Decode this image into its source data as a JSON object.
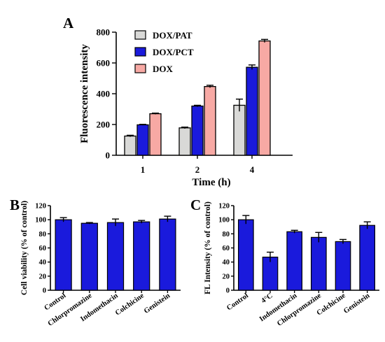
{
  "colors": {
    "pat": "#d9d9d7",
    "pct": "#1a1adc",
    "dox": "#f7a9a4",
    "blue": "#1a1adc",
    "axis": "#000000"
  },
  "chart_data": [
    {
      "id": "A",
      "panel_label": "A",
      "type": "bar",
      "xlabel": "Time (h)",
      "ylabel": "Fluorescence intensity",
      "ylim": [
        0,
        800
      ],
      "yticks": [
        0,
        200,
        400,
        600,
        800
      ],
      "categories": [
        "1",
        "2",
        "4"
      ],
      "legend_position": "top-left",
      "series": [
        {
          "name": "DOX/PAT",
          "color": "#d9d9d7",
          "values": [
            125,
            178,
            325
          ],
          "errors": [
            5,
            5,
            40
          ]
        },
        {
          "name": "DOX/PCT",
          "color": "#1a1adc",
          "values": [
            198,
            320,
            572
          ],
          "errors": [
            3,
            5,
            15
          ]
        },
        {
          "name": "DOX",
          "color": "#f7a9a4",
          "values": [
            270,
            447,
            743
          ],
          "errors": [
            4,
            8,
            10
          ]
        }
      ]
    },
    {
      "id": "B",
      "panel_label": "B",
      "type": "bar",
      "xlabel": "",
      "ylabel": "Cell viability (% of control)",
      "ylim": [
        0,
        120
      ],
      "yticks": [
        0,
        20,
        40,
        60,
        80,
        100,
        120
      ],
      "categories": [
        "Control",
        "Chlorpromazine",
        "Indomethacin",
        "Colchicine",
        "Genistein"
      ],
      "series": [
        {
          "color": "#1a1adc",
          "values": [
            100,
            95,
            96,
            97,
            101
          ],
          "errors": [
            3,
            1,
            5,
            2,
            4
          ]
        }
      ]
    },
    {
      "id": "C",
      "panel_label": "C",
      "type": "bar",
      "xlabel": "",
      "ylabel": "FL Intensity (% of control)",
      "ylim": [
        0,
        120
      ],
      "yticks": [
        0,
        20,
        40,
        60,
        80,
        100,
        120
      ],
      "categories": [
        "Control",
        "4°C",
        "Indomethacin",
        "Chlorpromazine",
        "Colchicine",
        "Genistein"
      ],
      "series": [
        {
          "color": "#1a1adc",
          "values": [
            100,
            47,
            83,
            75,
            69,
            92
          ],
          "errors": [
            6,
            7,
            2,
            7,
            3,
            5
          ]
        }
      ]
    }
  ]
}
